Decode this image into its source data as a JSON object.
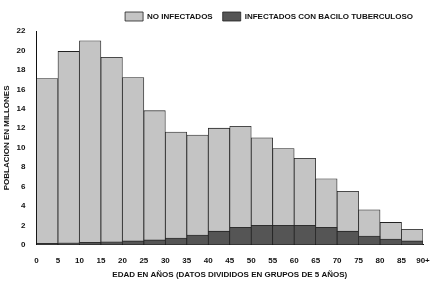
{
  "chart_data": {
    "type": "histogram",
    "x_label": "EDAD EN AÑOS (DATOS DIVIDIDOS EN GRUPOS DE 5 AÑOS)",
    "y_label": "POBLACION EN MILLONES",
    "bins": [
      0,
      5,
      10,
      15,
      20,
      25,
      30,
      35,
      40,
      45,
      50,
      55,
      60,
      65,
      70,
      75,
      80,
      85,
      90
    ],
    "series": [
      {
        "name": "INFECTADOS CON BACILO TUBERCULOSO",
        "color": "#555555",
        "values": [
          0.15,
          0.2,
          0.25,
          0.3,
          0.4,
          0.5,
          0.7,
          1.0,
          1.4,
          1.8,
          2.0,
          2.0,
          2.0,
          1.8,
          1.4,
          0.9,
          0.6,
          0.4
        ]
      },
      {
        "name": "NO INFECTADOS",
        "color": "#c4c4c4",
        "values": [
          16.95,
          19.7,
          20.75,
          19.0,
          16.8,
          13.3,
          10.9,
          10.3,
          10.6,
          10.4,
          9.0,
          7.9,
          6.9,
          5.0,
          4.1,
          2.7,
          1.7,
          1.2
        ]
      }
    ],
    "stacked": true,
    "xlim": [
      0,
      90
    ],
    "xticks": [
      0,
      5,
      10,
      15,
      20,
      25,
      30,
      35,
      40,
      45,
      50,
      55,
      60,
      65,
      70,
      75,
      80,
      85,
      {
        "value": 90,
        "label": "90+"
      }
    ],
    "ylim": [
      0,
      22
    ],
    "yticks": [
      0,
      2,
      4,
      6,
      8,
      10,
      12,
      14,
      16,
      18,
      20,
      22
    ],
    "grid": false,
    "legend": "upper right"
  }
}
